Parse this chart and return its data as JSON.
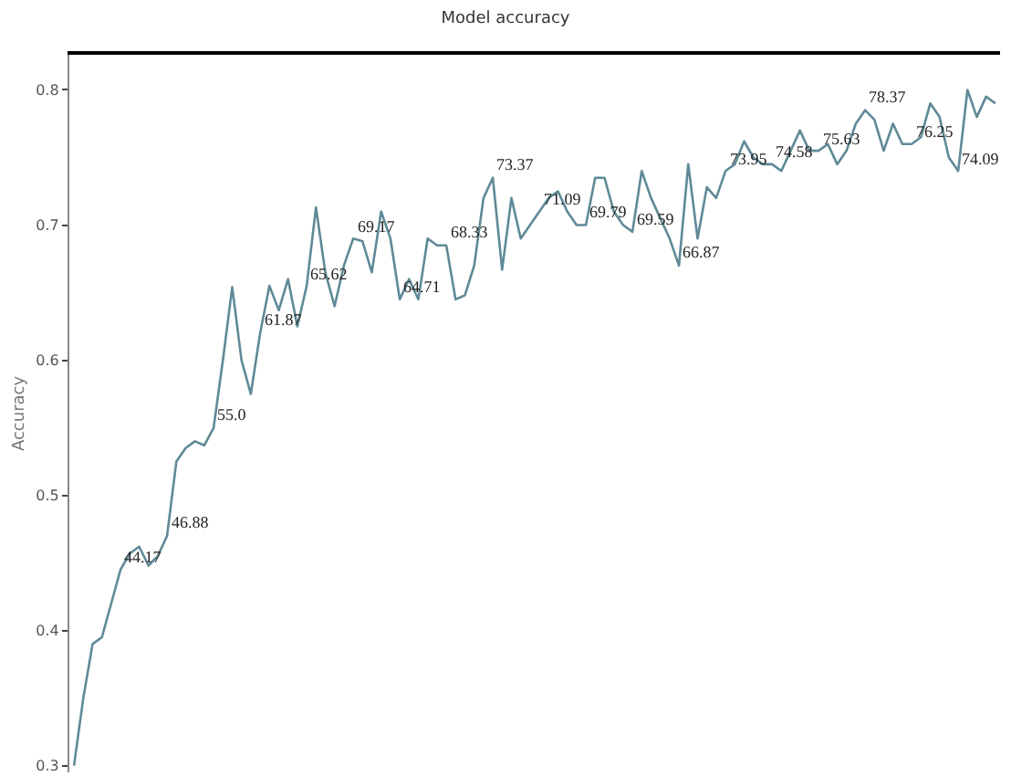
{
  "chart_data": {
    "type": "line",
    "title": "Model accuracy",
    "ylabel": "Accuracy",
    "categories": [
      null,
      null,
      null,
      null,
      null,
      null,
      null,
      null,
      null,
      null,
      null,
      null,
      null,
      null,
      null,
      null,
      null,
      null,
      null,
      null,
      null,
      null,
      null,
      null,
      null,
      null,
      null,
      null,
      null,
      null,
      null,
      null,
      null,
      null,
      null,
      null,
      null,
      null,
      null,
      null,
      null,
      null,
      null,
      null,
      null,
      null,
      null,
      null,
      null,
      null,
      null,
      null,
      null,
      null,
      null,
      null,
      null,
      null,
      null,
      null,
      null,
      null,
      null,
      null,
      null,
      null,
      null,
      null,
      null,
      null,
      null,
      null,
      null,
      null,
      null,
      null,
      null,
      null,
      null,
      null,
      null,
      null,
      null,
      null,
      null,
      null,
      null,
      null,
      null,
      null,
      null,
      null,
      null,
      null,
      null,
      null,
      null,
      null,
      null,
      null
    ],
    "series": [
      {
        "color": "#5f8a96",
        "values": [
          0.3,
          0.35,
          0.39,
          0.395,
          0.42,
          0.445,
          0.457,
          0.462,
          0.448,
          0.455,
          0.47,
          0.525,
          0.535,
          0.54,
          0.537,
          0.55,
          0.6,
          0.654,
          0.6,
          0.575,
          0.62,
          0.655,
          0.637,
          0.66,
          0.625,
          0.655,
          0.713,
          0.665,
          0.64,
          0.67,
          0.69,
          0.688,
          0.665,
          0.71,
          0.69,
          0.645,
          0.66,
          0.645,
          0.69,
          0.685,
          0.685,
          0.645,
          0.648,
          0.67,
          0.72,
          0.735,
          0.667,
          0.72,
          0.69,
          0.7,
          0.71,
          0.72,
          0.725,
          0.71,
          0.7,
          0.7,
          0.735,
          0.735,
          0.71,
          0.7,
          0.695,
          0.74,
          0.72,
          0.705,
          0.69,
          0.67,
          0.745,
          0.69,
          0.728,
          0.72,
          0.74,
          0.745,
          0.762,
          0.75,
          0.745,
          0.745,
          0.74,
          0.755,
          0.77,
          0.755,
          0.755,
          0.76,
          0.745,
          0.755,
          0.775,
          0.785,
          0.778,
          0.755,
          0.775,
          0.76,
          0.76,
          0.765,
          0.79,
          0.78,
          0.75,
          0.74,
          0.8,
          0.78,
          0.795,
          0.79
        ]
      }
    ],
    "annotations": [
      "44.17",
      "46.88",
      "55.0",
      "61.87",
      "65.62",
      "69.17",
      "64.71",
      "68.33",
      "73.37",
      "71.09",
      "69.79",
      "69.59",
      "66.87",
      "73.95",
      "74.58",
      "75.63",
      "78.37",
      "76.25",
      "74.09"
    ],
    "ylim": [
      0.295,
      0.826
    ],
    "yticks": [
      0.3,
      0.4,
      0.5,
      0.6,
      0.7,
      0.8
    ],
    "legend": false,
    "marker": "none",
    "line_style": "solid",
    "tick_labels": "y"
  }
}
